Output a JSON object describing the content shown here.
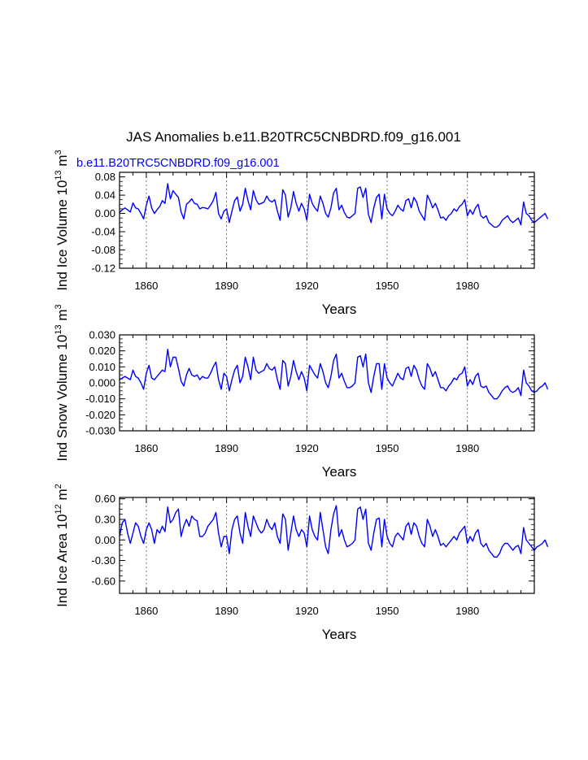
{
  "title": "JAS Anomalies b.e11.B20TRC5CNBDRD.f09_g16.001",
  "series_label": "b.e11.B20TRC5CNBDRD.f09_g16.001",
  "colors": {
    "series": "#0000ff",
    "axes": "#000000",
    "grid": "#555555"
  },
  "chart_data": [
    {
      "type": "line",
      "id": "ice-volume",
      "ylabel": {
        "main": "Ind Ice Volume 10",
        "sup": "13",
        "unit": " m",
        "unit_sup": "3"
      },
      "xlabel": "Years",
      "xlim": [
        1850,
        2005
      ],
      "ylim": [
        -0.12,
        0.09
      ],
      "xticks": [
        1860,
        1890,
        1920,
        1950,
        1980
      ],
      "xtick_labels": [
        "1860",
        "1890",
        "1920",
        "1950",
        "1980"
      ],
      "yticks": [
        0.08,
        0.04,
        0.0,
        -0.04,
        -0.08,
        -0.12
      ],
      "ytick_labels": [
        "0.08",
        "0.04",
        "0.00",
        "-0.04",
        "-0.08",
        "-0.12"
      ],
      "grid_x": [
        1860,
        1890,
        1920,
        1950,
        1980
      ],
      "series": [
        {
          "name": "b.e11.B20TRC5CNBDRD.f09_g16.001",
          "x_start": 1850,
          "values": [
            0.002,
            0.008,
            0.012,
            0.008,
            0.003,
            0.023,
            0.012,
            0.01,
            0.0,
            -0.012,
            0.018,
            0.038,
            0.012,
            0.0,
            0.008,
            0.015,
            0.028,
            0.022,
            0.065,
            0.032,
            0.05,
            0.042,
            0.035,
            0.003,
            -0.012,
            0.02,
            0.025,
            0.032,
            0.022,
            0.02,
            0.01,
            0.013,
            0.012,
            0.01,
            0.018,
            0.028,
            0.046,
            0.0,
            -0.012,
            0.005,
            0.01,
            -0.02,
            0.005,
            0.028,
            0.036,
            0.005,
            0.02,
            0.055,
            0.028,
            0.008,
            0.05,
            0.03,
            0.02,
            0.022,
            0.025,
            0.038,
            0.028,
            0.025,
            0.03,
            0.005,
            -0.015,
            0.052,
            0.04,
            -0.008,
            0.012,
            0.048,
            0.022,
            0.005,
            0.022,
            0.01,
            -0.015,
            0.042,
            0.022,
            0.012,
            0.005,
            0.038,
            0.022,
            0.0,
            -0.008,
            0.012,
            0.045,
            0.055,
            0.008,
            0.018,
            0.002,
            -0.008,
            -0.01,
            -0.005,
            0.0,
            0.055,
            0.058,
            0.035,
            0.055,
            -0.002,
            -0.02,
            0.012,
            0.035,
            0.042,
            -0.012,
            0.042,
            0.01,
            0.0,
            -0.005,
            0.005,
            0.018,
            0.01,
            0.005,
            0.028,
            0.032,
            0.012,
            0.035,
            0.025,
            0.005,
            -0.005,
            -0.015,
            0.04,
            0.028,
            0.012,
            0.022,
            0.008,
            -0.01,
            -0.008,
            -0.015,
            -0.005,
            0.0,
            0.01,
            0.005,
            0.015,
            0.02,
            0.03,
            -0.005,
            0.008,
            -0.002,
            0.012,
            0.02,
            -0.005,
            -0.01,
            -0.005,
            -0.02,
            -0.025,
            -0.03,
            -0.03,
            -0.025,
            -0.015,
            -0.01,
            -0.005,
            -0.015,
            -0.02,
            -0.015,
            -0.01,
            -0.025,
            0.025,
            0.0,
            -0.005,
            -0.015,
            -0.02,
            -0.015,
            -0.01,
            -0.005,
            0.0,
            -0.012
          ]
        }
      ]
    },
    {
      "type": "line",
      "id": "snow-volume",
      "ylabel": {
        "main": "Ind Snow Volume 10",
        "sup": "13",
        "unit": " m",
        "unit_sup": "3"
      },
      "xlabel": "Years",
      "xlim": [
        1850,
        2005
      ],
      "ylim": [
        -0.03,
        0.03
      ],
      "xticks": [
        1860,
        1890,
        1920,
        1950,
        1980
      ],
      "xtick_labels": [
        "1860",
        "1890",
        "1920",
        "1950",
        "1980"
      ],
      "yticks": [
        0.03,
        0.02,
        0.01,
        0.0,
        -0.01,
        -0.02,
        -0.03
      ],
      "ytick_labels": [
        "0.030",
        "0.020",
        "0.010",
        "0.000",
        "-0.010",
        "-0.020",
        "-0.030"
      ],
      "grid_x": [
        1860,
        1890,
        1920,
        1950,
        1980
      ],
      "series": [
        {
          "name": "b.e11.B20TRC5CNBDRD.f09_g16.001",
          "x_start": 1850,
          "values": [
            0.002,
            0.003,
            0.004,
            0.003,
            0.002,
            0.008,
            0.004,
            0.003,
            0.0,
            -0.004,
            0.006,
            0.011,
            0.003,
            0.002,
            0.004,
            0.006,
            0.008,
            0.007,
            0.021,
            0.01,
            0.016,
            0.016,
            0.009,
            0.001,
            -0.002,
            0.005,
            0.009,
            0.005,
            0.004,
            0.005,
            0.002,
            0.004,
            0.003,
            0.003,
            0.006,
            0.01,
            0.013,
            0.002,
            -0.004,
            0.006,
            0.004,
            -0.005,
            0.002,
            0.008,
            0.011,
            0.0,
            0.004,
            0.016,
            0.01,
            0.002,
            0.016,
            0.008,
            0.006,
            0.007,
            0.008,
            0.012,
            0.009,
            0.008,
            0.01,
            0.002,
            -0.004,
            0.014,
            0.012,
            -0.002,
            0.004,
            0.014,
            0.007,
            0.002,
            0.007,
            0.003,
            -0.005,
            0.011,
            0.008,
            0.005,
            0.003,
            0.012,
            0.007,
            0.0,
            -0.003,
            0.004,
            0.014,
            0.018,
            0.003,
            0.006,
            0.001,
            -0.003,
            -0.003,
            -0.002,
            0.0,
            0.016,
            0.017,
            0.01,
            0.018,
            0.0,
            -0.006,
            0.004,
            0.012,
            0.012,
            -0.004,
            0.012,
            0.003,
            0.0,
            -0.002,
            0.002,
            0.006,
            0.003,
            0.002,
            0.009,
            0.01,
            0.004,
            0.011,
            0.008,
            0.002,
            -0.002,
            -0.004,
            0.012,
            0.009,
            0.004,
            0.007,
            0.002,
            -0.003,
            -0.003,
            -0.005,
            -0.002,
            0.0,
            0.003,
            0.002,
            0.005,
            0.006,
            0.01,
            -0.002,
            0.002,
            -0.001,
            0.004,
            0.006,
            -0.002,
            -0.003,
            -0.002,
            -0.006,
            -0.008,
            -0.01,
            -0.01,
            -0.008,
            -0.005,
            -0.003,
            -0.002,
            -0.005,
            -0.006,
            -0.005,
            -0.003,
            -0.008,
            0.008,
            0.0,
            -0.002,
            -0.005,
            -0.006,
            -0.005,
            -0.003,
            -0.002,
            0.0,
            -0.004
          ]
        }
      ]
    },
    {
      "type": "line",
      "id": "ice-area",
      "ylabel": {
        "main": "Ind Ice Area 10",
        "sup": "12",
        "unit": " m",
        "unit_sup": "2"
      },
      "xlabel": "Years",
      "xlim": [
        1850,
        2005
      ],
      "ylim": [
        -0.78,
        0.62
      ],
      "xticks": [
        1860,
        1890,
        1920,
        1950,
        1980
      ],
      "xtick_labels": [
        "1860",
        "1890",
        "1920",
        "1950",
        "1980"
      ],
      "yticks": [
        0.6,
        0.3,
        0.0,
        -0.3,
        -0.6
      ],
      "ytick_labels": [
        "0.60",
        "0.30",
        "0.00",
        "-0.30",
        "-0.60"
      ],
      "grid_x": [
        1860,
        1890,
        1920,
        1950,
        1980
      ],
      "series": [
        {
          "name": "b.e11.B20TRC5CNBDRD.f09_g16.001",
          "x_start": 1850,
          "values": [
            0.05,
            0.25,
            0.3,
            0.1,
            -0.05,
            0.1,
            0.25,
            0.2,
            0.05,
            -0.05,
            0.15,
            0.25,
            0.15,
            -0.05,
            0.15,
            0.1,
            0.2,
            0.12,
            0.48,
            0.25,
            0.3,
            0.4,
            0.45,
            0.05,
            0.2,
            0.3,
            0.2,
            0.35,
            0.3,
            0.28,
            0.05,
            0.05,
            0.1,
            0.2,
            0.25,
            0.3,
            0.4,
            0.1,
            -0.1,
            0.05,
            0.05,
            -0.2,
            0.15,
            0.3,
            0.35,
            0.1,
            -0.05,
            0.4,
            0.2,
            0.05,
            0.35,
            0.25,
            0.15,
            0.1,
            0.15,
            0.3,
            0.2,
            0.15,
            0.25,
            0.05,
            -0.05,
            0.38,
            0.3,
            -0.15,
            0.1,
            0.35,
            0.15,
            0.05,
            0.15,
            0.1,
            -0.1,
            0.35,
            0.15,
            0.05,
            0.0,
            0.4,
            0.15,
            -0.1,
            -0.2,
            0.15,
            0.38,
            0.5,
            0.05,
            0.15,
            0.0,
            -0.1,
            -0.08,
            -0.05,
            0.0,
            0.45,
            0.48,
            0.3,
            0.45,
            -0.05,
            -0.15,
            0.1,
            0.3,
            0.32,
            -0.1,
            0.3,
            0.05,
            -0.05,
            -0.1,
            0.05,
            0.1,
            0.05,
            0.0,
            0.2,
            0.25,
            0.08,
            0.25,
            0.2,
            0.05,
            -0.05,
            -0.1,
            0.3,
            0.2,
            0.05,
            0.15,
            0.05,
            -0.08,
            -0.05,
            -0.1,
            -0.05,
            0.0,
            0.05,
            0.0,
            0.1,
            0.15,
            0.2,
            -0.05,
            0.05,
            -0.02,
            0.1,
            0.15,
            -0.05,
            -0.1,
            -0.05,
            -0.15,
            -0.2,
            -0.25,
            -0.25,
            -0.2,
            -0.1,
            -0.05,
            -0.05,
            -0.1,
            -0.15,
            -0.1,
            -0.08,
            -0.2,
            0.18,
            0.0,
            -0.05,
            -0.1,
            -0.15,
            -0.1,
            -0.08,
            -0.05,
            0.0,
            -0.1
          ]
        }
      ]
    }
  ]
}
